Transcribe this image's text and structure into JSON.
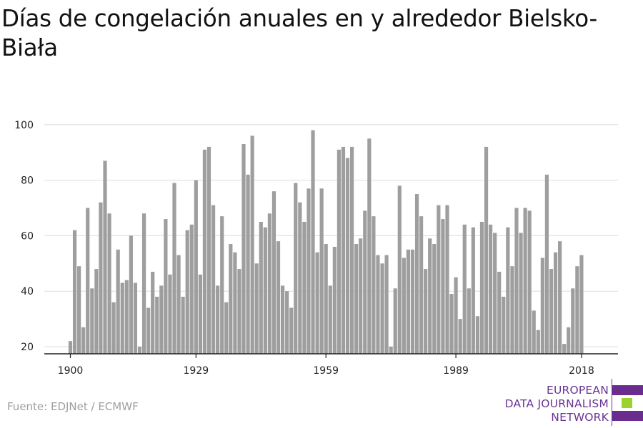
{
  "title": "Días de congelación anuales en y alrededor Bielsko-Biała",
  "source": "Fuente: EDJNet / ECMWF",
  "logo": {
    "lines": [
      "EUROPEAN",
      "DATA JOURNALISM",
      "NETWORK"
    ],
    "colors": {
      "text": "#6a3595",
      "bar_purple": "#6a2c8e",
      "bar_green": "#9cd22e"
    }
  },
  "colors": {
    "bar": "#9e9e9e",
    "grid": "#dddddd",
    "axis": "#222222"
  },
  "chart_data": {
    "type": "bar",
    "title": "Días de congelación anuales en y alrededor Bielsko-Biała",
    "xlabel": "",
    "ylabel": "",
    "ylim": [
      20,
      100
    ],
    "y_ticks": [
      20,
      40,
      60,
      80,
      100
    ],
    "x_ticks": [
      1900,
      1929,
      1959,
      1989,
      2018
    ],
    "grid": true,
    "start_year": 1900,
    "x": [
      1900,
      1901,
      1902,
      1903,
      1904,
      1905,
      1906,
      1907,
      1908,
      1909,
      1910,
      1911,
      1912,
      1913,
      1914,
      1915,
      1916,
      1917,
      1918,
      1919,
      1920,
      1921,
      1922,
      1923,
      1924,
      1925,
      1926,
      1927,
      1928,
      1929,
      1930,
      1931,
      1932,
      1933,
      1934,
      1935,
      1936,
      1937,
      1938,
      1939,
      1940,
      1941,
      1942,
      1943,
      1944,
      1945,
      1946,
      1947,
      1948,
      1949,
      1950,
      1951,
      1952,
      1953,
      1954,
      1955,
      1956,
      1957,
      1958,
      1959,
      1960,
      1961,
      1962,
      1963,
      1964,
      1965,
      1966,
      1967,
      1968,
      1969,
      1970,
      1971,
      1972,
      1973,
      1974,
      1975,
      1976,
      1977,
      1978,
      1979,
      1980,
      1981,
      1982,
      1983,
      1984,
      1985,
      1986,
      1987,
      1988,
      1989,
      1990,
      1991,
      1992,
      1993,
      1994,
      1995,
      1996,
      1997,
      1998,
      1999,
      2000,
      2001,
      2002,
      2003,
      2004,
      2005,
      2006,
      2007,
      2008,
      2009,
      2010,
      2011,
      2012,
      2013,
      2014,
      2015,
      2016,
      2017,
      2018
    ],
    "values": [
      22,
      62,
      49,
      27,
      70,
      41,
      48,
      72,
      87,
      68,
      36,
      55,
      43,
      44,
      60,
      43,
      20,
      68,
      34,
      47,
      38,
      42,
      66,
      46,
      79,
      53,
      38,
      62,
      64,
      80,
      46,
      91,
      92,
      71,
      42,
      67,
      36,
      57,
      54,
      48,
      93,
      82,
      96,
      50,
      65,
      63,
      68,
      76,
      58,
      42,
      40,
      34,
      79,
      72,
      65,
      77,
      98,
      54,
      77,
      57,
      42,
      56,
      91,
      92,
      88,
      92,
      57,
      59,
      69,
      95,
      67,
      53,
      50,
      53,
      20,
      41,
      78,
      52,
      55,
      55,
      75,
      67,
      48,
      59,
      57,
      71,
      66,
      71,
      39,
      45,
      30,
      64,
      41,
      63,
      31,
      65,
      92,
      64,
      61,
      47,
      38,
      63,
      49,
      70,
      61,
      70,
      69,
      33,
      26,
      52,
      82,
      48,
      54,
      58,
      21,
      27,
      41,
      49,
      53
    ]
  }
}
